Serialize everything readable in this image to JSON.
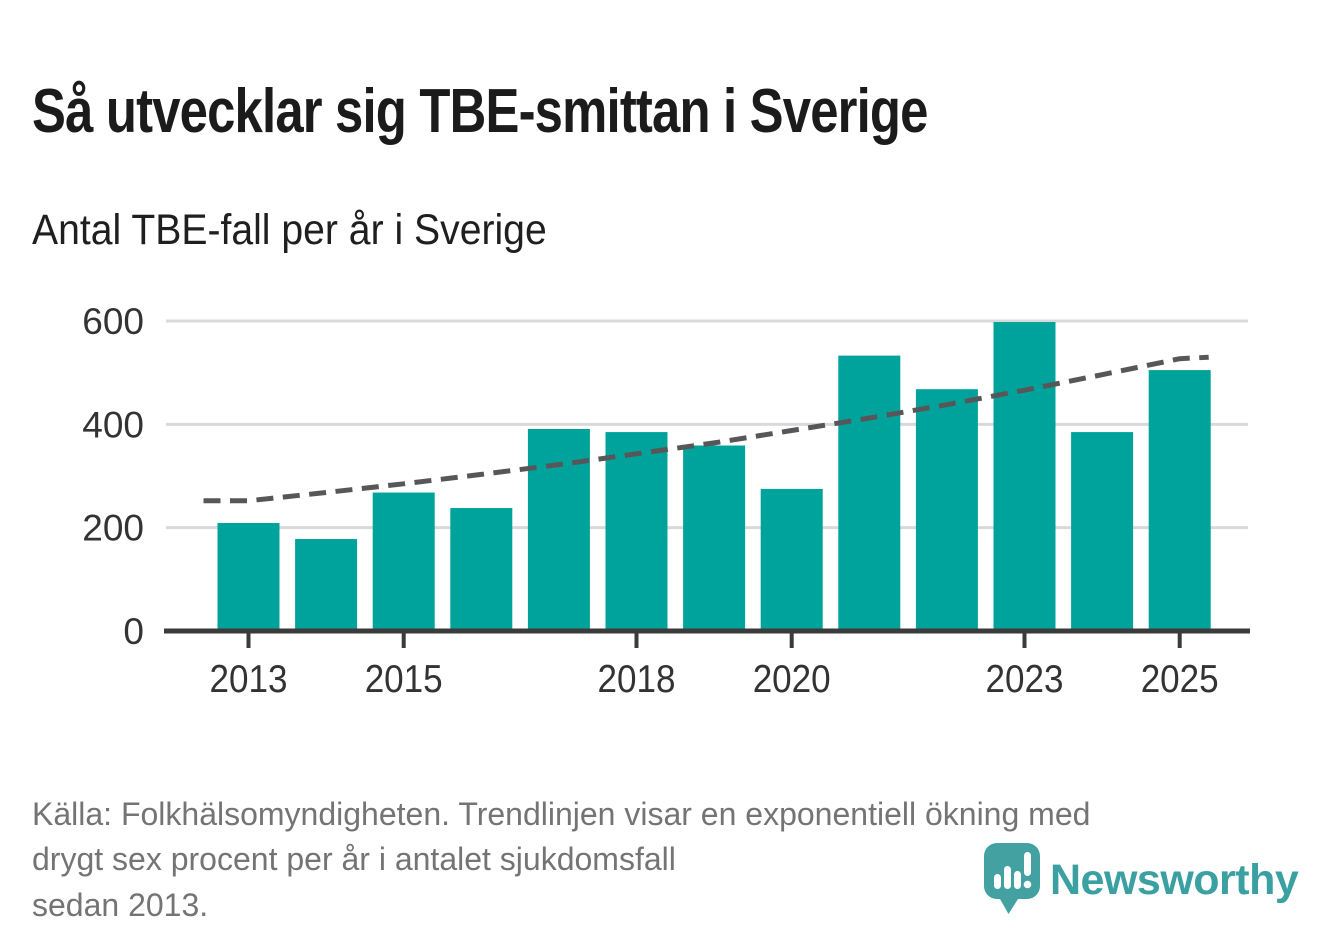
{
  "header": {
    "title": "Så utvecklar sig TBE-smittan i Sverige",
    "subtitle": "Antal TBE-fall per år i Sverige"
  },
  "chart_data": {
    "type": "bar",
    "title": "Så utvecklar sig TBE-smittan i Sverige",
    "subtitle": "Antal TBE-fall per år i Sverige",
    "categories": [
      2013,
      2014,
      2015,
      2016,
      2017,
      2018,
      2019,
      2020,
      2021,
      2022,
      2023,
      2024,
      2025
    ],
    "values": [
      209,
      178,
      268,
      238,
      391,
      385,
      359,
      275,
      533,
      468,
      598,
      385,
      505
    ],
    "trend": {
      "name": "Trendlinje: exponentiell ökning med drygt sex procent per år sedan 2013",
      "style": "dashed",
      "values": [
        252,
        268,
        285,
        303,
        322,
        343,
        364,
        388,
        412,
        438,
        466,
        496,
        527
      ]
    },
    "xticks": [
      "2013",
      "2015",
      "2018",
      "2020",
      "2023",
      "2025"
    ],
    "yticks": [
      0,
      200,
      400,
      600
    ],
    "ylim": [
      0,
      620
    ],
    "grid": "horizontal",
    "legend_position": "none",
    "xlabel": "",
    "ylabel": "",
    "bar_color": "#00a39b",
    "trend_color": "#57575a",
    "axis_color": "#3b3b3b",
    "grid_color": "#d9d9d9",
    "tick_label_color": "#333333"
  },
  "footer": {
    "source_text": "Källa: Folkhälsomyndigheten. Trendlinjen visar en exponentiell ökning med\ndrygt sex procent per år i antalet sjukdomsfall\nsedan 2013.",
    "brand_name": "Newsworthy"
  },
  "colors": {
    "background": "#ffffff",
    "title_text": "#1b1b1b",
    "muted_text": "#747474",
    "brand_teal": "#43a1a1"
  }
}
